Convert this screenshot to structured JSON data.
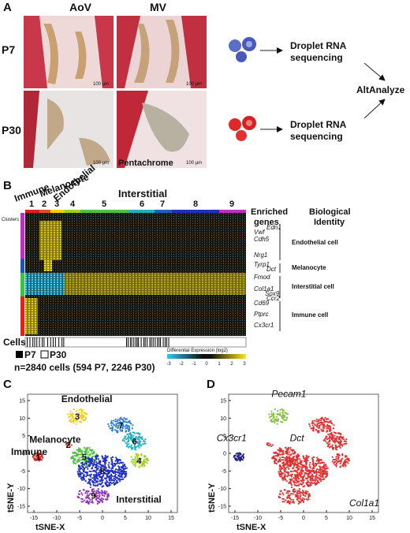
{
  "panel_a": {
    "label": "A",
    "columns": [
      "AoV",
      "MV"
    ],
    "rows": [
      "P7",
      "P30"
    ],
    "scale_bars": [
      "100 µm",
      "100 µm",
      "100 µm",
      "100 µm"
    ],
    "stain": "Pentachrome",
    "flow_top": [
      "Droplet RNA",
      "sequencing"
    ],
    "flow_bottom": [
      "Droplet RNA",
      "sequencing"
    ],
    "merge": "AltAnalyze"
  },
  "panel_b": {
    "label": "B",
    "groups": [
      "Immune",
      "Melanocyte",
      "Endothelial",
      "Interstitial"
    ],
    "clusters_label": "Clusters",
    "clusters": [
      "1",
      "2",
      "3",
      "4",
      "5",
      "6",
      "7",
      "8",
      "9"
    ],
    "enriched_header": [
      "Enriched",
      "genes"
    ],
    "identity_header": [
      "Biological",
      "Identity"
    ],
    "genes": [
      "Vwf",
      "Edn1",
      "Cdh5",
      "Nrg1",
      "Tyrp1",
      "Dct",
      "Fmod",
      "Col1a1",
      "Sox9",
      "Cd69",
      "Ccr2",
      "Ptprc",
      "Cx3cr1"
    ],
    "identities": [
      "Endothelial cell",
      "Melanocyte",
      "Interstitial cell",
      "Immune cell"
    ],
    "cells_label": "Cells",
    "legend": [
      "P7",
      "P30"
    ],
    "summary": "n=2840 cells (594 P7, 2246 P30)",
    "colorbar_title": "Differential Expression (log2)",
    "colorbar_ticks": [
      "-3",
      "-2",
      "-1",
      "0",
      "1",
      "2",
      "3"
    ]
  },
  "panel_c": {
    "label": "C",
    "cluster_labels": [
      "1",
      "2",
      "3",
      "4",
      "5",
      "6",
      "7",
      "8",
      "9"
    ],
    "annotations": [
      "Endothelial",
      "Melanocyte",
      "Immune",
      "Interstitial"
    ],
    "xlabel": "tSNE-X",
    "ylabel": "tSNE-Y",
    "xticks": [
      -15,
      -10,
      -5,
      0,
      5,
      10,
      15
    ],
    "yticks": [
      -15,
      -10,
      -5,
      0,
      5,
      10,
      15
    ]
  },
  "panel_d": {
    "label": "D",
    "genes": [
      "Pecam1",
      "Cx3cr1",
      "Dct",
      "Col1a1"
    ],
    "xlabel": "tSNE-X",
    "ylabel": "tSNE-Y",
    "xticks": [
      -15,
      -10,
      -5,
      0,
      5,
      10,
      15
    ],
    "yticks": [
      -15,
      -10,
      -5,
      0,
      5,
      10,
      15
    ]
  }
}
